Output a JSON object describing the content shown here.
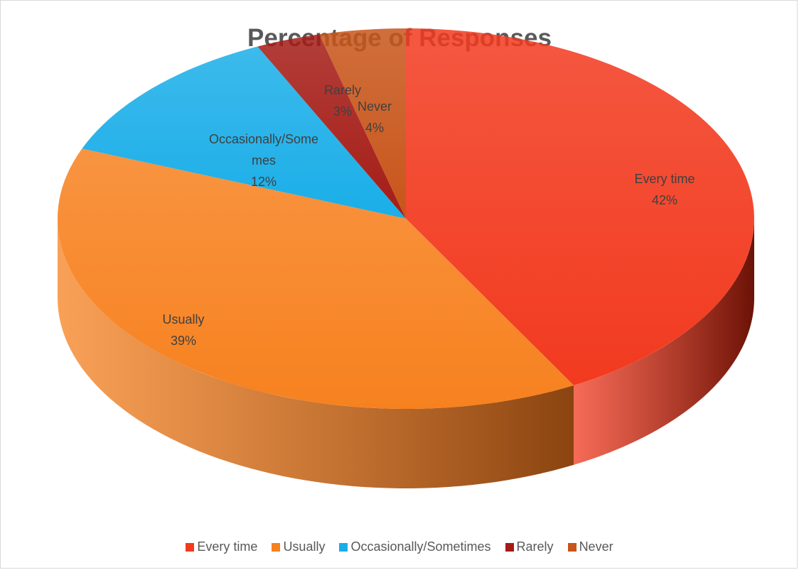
{
  "chart_data": {
    "type": "pie",
    "title": "Percentage of Responses",
    "style": "3d",
    "legend_position": "bottom",
    "slices": [
      {
        "name": "Every time",
        "value": 42,
        "label_name": "Every time",
        "label_pct": "42%",
        "color": "#f23a1f",
        "side_color": "#6b1206"
      },
      {
        "name": "Usually",
        "value": 39,
        "label_name": "Usually",
        "label_pct": "39%",
        "color": "#f7811f",
        "side_color": "#8a4410"
      },
      {
        "name": "Occasionally/Sometimes",
        "value": 12,
        "label_name": [
          "Occasionally/Some",
          "mes"
        ],
        "label_pct": "12%",
        "color": "#1aaee8",
        "side_color": "#0c5d7d"
      },
      {
        "name": "Rarely",
        "value": 3,
        "label_name": "Rarely",
        "label_pct": "3%",
        "color": "#a51c16",
        "side_color": "#5a0d0a"
      },
      {
        "name": "Never",
        "value": 4,
        "label_name": "Never",
        "label_pct": "4%",
        "color": "#c8551a",
        "side_color": "#6e2d0c"
      }
    ]
  }
}
